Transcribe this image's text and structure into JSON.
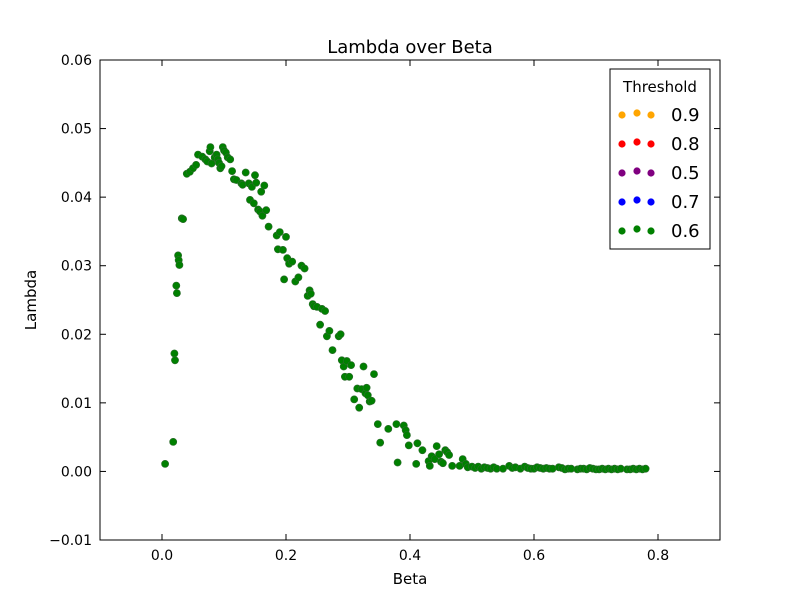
{
  "chart_data": {
    "type": "scatter",
    "title": "Lambda over Beta",
    "xlabel": "Beta",
    "ylabel": "Lambda",
    "xlim": [
      -0.1,
      0.9
    ],
    "ylim": [
      -0.01,
      0.06
    ],
    "xticks": [
      0.0,
      0.2,
      0.4,
      0.6,
      0.8
    ],
    "xtick_labels": [
      "0.0",
      "0.2",
      "0.4",
      "0.6",
      "0.8"
    ],
    "yticks": [
      -0.01,
      0.0,
      0.01,
      0.02,
      0.03,
      0.04,
      0.05,
      0.06
    ],
    "ytick_labels": [
      "−0.01",
      "0.00",
      "0.01",
      "0.02",
      "0.03",
      "0.04",
      "0.05",
      "0.06"
    ],
    "grid": false,
    "legend": {
      "title": "Threshold",
      "placement": "top-right",
      "entries": [
        {
          "label": "0.9",
          "color": "#ffa500"
        },
        {
          "label": "0.8",
          "color": "#ff0000"
        },
        {
          "label": "0.5",
          "color": "#800080"
        },
        {
          "label": "0.7",
          "color": "#0000ff"
        },
        {
          "label": "0.6",
          "color": "#008000"
        }
      ]
    },
    "series": [
      {
        "name": "0.6",
        "color": "#008000",
        "points": [
          [
            0.005,
            0.0011
          ],
          [
            0.018,
            0.0043
          ],
          [
            0.02,
            0.0172
          ],
          [
            0.021,
            0.0162
          ],
          [
            0.023,
            0.0271
          ],
          [
            0.024,
            0.026
          ],
          [
            0.026,
            0.0315
          ],
          [
            0.027,
            0.0308
          ],
          [
            0.028,
            0.0301
          ],
          [
            0.032,
            0.0369
          ],
          [
            0.034,
            0.0368
          ],
          [
            0.04,
            0.0434
          ],
          [
            0.045,
            0.0437
          ],
          [
            0.05,
            0.0442
          ],
          [
            0.055,
            0.0447
          ],
          [
            0.058,
            0.0462
          ],
          [
            0.065,
            0.0459
          ],
          [
            0.07,
            0.0455
          ],
          [
            0.073,
            0.0452
          ],
          [
            0.077,
            0.0467
          ],
          [
            0.078,
            0.0473
          ],
          [
            0.08,
            0.0449
          ],
          [
            0.085,
            0.0458
          ],
          [
            0.088,
            0.0462
          ],
          [
            0.09,
            0.0455
          ],
          [
            0.092,
            0.045
          ],
          [
            0.094,
            0.0442
          ],
          [
            0.096,
            0.0445
          ],
          [
            0.098,
            0.0473
          ],
          [
            0.1,
            0.0468
          ],
          [
            0.103,
            0.0465
          ],
          [
            0.106,
            0.0458
          ],
          [
            0.11,
            0.0455
          ],
          [
            0.113,
            0.0438
          ],
          [
            0.116,
            0.0426
          ],
          [
            0.12,
            0.0425
          ],
          [
            0.128,
            0.042
          ],
          [
            0.13,
            0.0418
          ],
          [
            0.135,
            0.0436
          ],
          [
            0.14,
            0.042
          ],
          [
            0.142,
            0.0396
          ],
          [
            0.145,
            0.0415
          ],
          [
            0.148,
            0.0391
          ],
          [
            0.15,
            0.0432
          ],
          [
            0.152,
            0.0421
          ],
          [
            0.155,
            0.0382
          ],
          [
            0.158,
            0.0379
          ],
          [
            0.16,
            0.0408
          ],
          [
            0.162,
            0.0373
          ],
          [
            0.165,
            0.0417
          ],
          [
            0.168,
            0.0381
          ],
          [
            0.172,
            0.0357
          ],
          [
            0.185,
            0.0344
          ],
          [
            0.187,
            0.0324
          ],
          [
            0.19,
            0.0349
          ],
          [
            0.195,
            0.0323
          ],
          [
            0.197,
            0.028
          ],
          [
            0.2,
            0.0342
          ],
          [
            0.202,
            0.0311
          ],
          [
            0.205,
            0.0303
          ],
          [
            0.21,
            0.0306
          ],
          [
            0.215,
            0.0277
          ],
          [
            0.22,
            0.0283
          ],
          [
            0.225,
            0.03
          ],
          [
            0.23,
            0.0296
          ],
          [
            0.235,
            0.0256
          ],
          [
            0.238,
            0.0264
          ],
          [
            0.24,
            0.0259
          ],
          [
            0.243,
            0.0244
          ],
          [
            0.245,
            0.0241
          ],
          [
            0.25,
            0.024
          ],
          [
            0.255,
            0.0214
          ],
          [
            0.258,
            0.0237
          ],
          [
            0.263,
            0.0234
          ],
          [
            0.266,
            0.0197
          ],
          [
            0.27,
            0.0205
          ],
          [
            0.275,
            0.0177
          ],
          [
            0.285,
            0.0197
          ],
          [
            0.288,
            0.02
          ],
          [
            0.29,
            0.0162
          ],
          [
            0.293,
            0.0153
          ],
          [
            0.295,
            0.0138
          ],
          [
            0.298,
            0.0161
          ],
          [
            0.302,
            0.0138
          ],
          [
            0.305,
            0.0155
          ],
          [
            0.31,
            0.0105
          ],
          [
            0.315,
            0.0121
          ],
          [
            0.318,
            0.0093
          ],
          [
            0.322,
            0.012
          ],
          [
            0.325,
            0.0153
          ],
          [
            0.328,
            0.0114
          ],
          [
            0.33,
            0.0122
          ],
          [
            0.332,
            0.0111
          ],
          [
            0.335,
            0.0102
          ],
          [
            0.338,
            0.0103
          ],
          [
            0.342,
            0.0142
          ],
          [
            0.348,
            0.0069
          ],
          [
            0.352,
            0.0042
          ],
          [
            0.365,
            0.0062
          ],
          [
            0.378,
            0.0069
          ],
          [
            0.38,
            0.0013
          ],
          [
            0.39,
            0.0067
          ],
          [
            0.393,
            0.006
          ],
          [
            0.395,
            0.0053
          ],
          [
            0.398,
            0.0038
          ],
          [
            0.41,
            0.0011
          ],
          [
            0.412,
            0.0041
          ],
          [
            0.42,
            0.0031
          ],
          [
            0.43,
            0.0015
          ],
          [
            0.432,
            0.0008
          ],
          [
            0.435,
            0.0022
          ],
          [
            0.44,
            0.0018
          ],
          [
            0.443,
            0.0037
          ],
          [
            0.447,
            0.0025
          ],
          [
            0.45,
            0.0014
          ],
          [
            0.453,
            0.0012
          ],
          [
            0.457,
            0.0031
          ],
          [
            0.46,
            0.0028
          ],
          [
            0.463,
            0.0024
          ],
          [
            0.468,
            0.0008
          ],
          [
            0.48,
            0.0008
          ],
          [
            0.485,
            0.0018
          ],
          [
            0.49,
            0.0011
          ],
          [
            0.493,
            0.0006
          ],
          [
            0.5,
            0.0007
          ],
          [
            0.505,
            0.0005
          ],
          [
            0.51,
            0.0007
          ],
          [
            0.515,
            0.0004
          ],
          [
            0.52,
            0.0006
          ],
          [
            0.525,
            0.0005
          ],
          [
            0.53,
            0.0004
          ],
          [
            0.535,
            0.0006
          ],
          [
            0.54,
            0.0004
          ],
          [
            0.55,
            0.0004
          ],
          [
            0.56,
            0.0008
          ],
          [
            0.565,
            0.0005
          ],
          [
            0.57,
            0.0006
          ],
          [
            0.578,
            0.0004
          ],
          [
            0.585,
            0.0007
          ],
          [
            0.59,
            0.0005
          ],
          [
            0.595,
            0.0004
          ],
          [
            0.6,
            0.0004
          ],
          [
            0.605,
            0.0006
          ],
          [
            0.61,
            0.0005
          ],
          [
            0.615,
            0.0004
          ],
          [
            0.62,
            0.0005
          ],
          [
            0.625,
            0.0004
          ],
          [
            0.63,
            0.0004
          ],
          [
            0.64,
            0.0006
          ],
          [
            0.645,
            0.0005
          ],
          [
            0.65,
            0.0003
          ],
          [
            0.655,
            0.0004
          ],
          [
            0.66,
            0.0004
          ],
          [
            0.67,
            0.0003
          ],
          [
            0.675,
            0.0004
          ],
          [
            0.68,
            0.0004
          ],
          [
            0.685,
            0.0003
          ],
          [
            0.69,
            0.0005
          ],
          [
            0.695,
            0.0004
          ],
          [
            0.7,
            0.0003
          ],
          [
            0.705,
            0.0003
          ],
          [
            0.71,
            0.0004
          ],
          [
            0.715,
            0.0003
          ],
          [
            0.72,
            0.0004
          ],
          [
            0.725,
            0.0003
          ],
          [
            0.73,
            0.0004
          ],
          [
            0.735,
            0.0003
          ],
          [
            0.74,
            0.0004
          ],
          [
            0.75,
            0.0003
          ],
          [
            0.755,
            0.0003
          ],
          [
            0.76,
            0.0004
          ],
          [
            0.765,
            0.0003
          ],
          [
            0.77,
            0.0004
          ],
          [
            0.775,
            0.0003
          ],
          [
            0.78,
            0.0004
          ]
        ]
      }
    ]
  }
}
